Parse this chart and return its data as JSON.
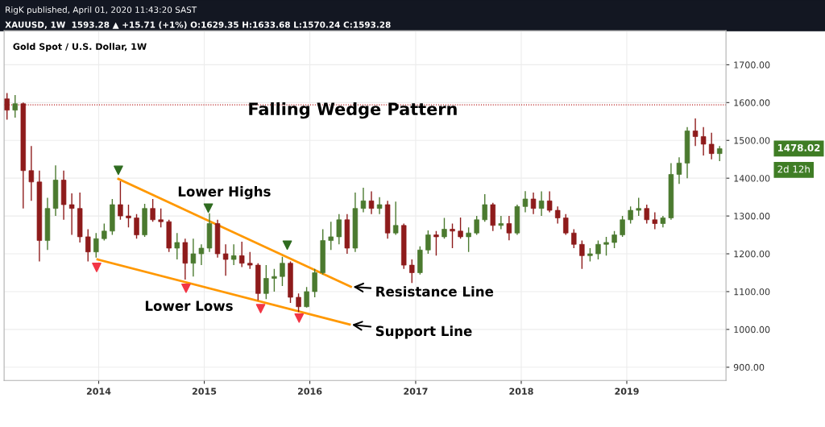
{
  "chart_data": {
    "type": "candlestick",
    "title": "Gold Spot / U.S. Dollar, 1W",
    "annotations": [
      "RigK published, April 01, 2020 11:43:20 SAST",
      "XAUUSD, 1W  1593.28 ▲ +15.71 (+1%) O:1629.35 H:1633.68 L:1570.24 C:1593.28",
      "Falling Wedge Pattern",
      "Lower Highs",
      "Lower Lows",
      "Resistance Line",
      "Support Line",
      "1478.02",
      "2d 12h"
    ],
    "x": [
      "2013-02-18",
      "2013-03-18",
      "2013-04-15",
      "2013-05-13",
      "2013-06-10",
      "2013-07-08",
      "2013-08-05",
      "2013-09-02",
      "2013-09-30",
      "2013-10-28",
      "2013-11-25",
      "2013-12-23",
      "2014-01-20",
      "2014-02-17",
      "2014-03-17",
      "2014-04-14",
      "2014-05-12",
      "2014-06-09",
      "2014-07-07",
      "2014-08-04",
      "2014-09-01",
      "2014-09-29",
      "2014-10-27",
      "2014-11-24",
      "2014-12-22",
      "2015-01-19",
      "2015-02-16",
      "2015-03-16",
      "2015-04-13",
      "2015-05-11",
      "2015-06-08",
      "2015-07-06",
      "2015-08-03",
      "2015-08-31",
      "2015-09-28",
      "2015-10-26",
      "2015-11-23",
      "2015-12-21",
      "2016-01-18",
      "2016-02-15",
      "2016-03-14",
      "2016-04-11",
      "2016-05-09",
      "2016-06-06",
      "2016-07-04",
      "2016-08-01",
      "2016-08-29",
      "2016-09-26",
      "2016-10-24",
      "2016-11-21",
      "2016-12-19",
      "2017-01-16",
      "2017-02-13",
      "2017-03-13",
      "2017-04-10",
      "2017-05-08",
      "2017-06-05",
      "2017-07-03",
      "2017-07-31",
      "2017-08-28",
      "2017-09-25",
      "2017-10-23",
      "2017-11-20",
      "2017-12-18",
      "2018-01-15",
      "2018-02-12",
      "2018-03-12",
      "2018-04-09",
      "2018-05-07",
      "2018-06-04",
      "2018-07-02",
      "2018-07-30",
      "2018-08-27",
      "2018-09-24",
      "2018-10-22",
      "2018-11-19",
      "2018-12-17",
      "2019-01-14",
      "2019-02-11",
      "2019-03-11",
      "2019-04-08",
      "2019-05-06",
      "2019-06-03",
      "2019-07-01",
      "2019-07-29",
      "2019-08-26",
      "2019-09-23",
      "2019-10-21",
      "2019-11-18"
    ],
    "ohlc": [
      [
        1610,
        1625,
        1555,
        1580
      ],
      [
        1580,
        1620,
        1560,
        1597
      ],
      [
        1597,
        1600,
        1320,
        1420
      ],
      [
        1420,
        1485,
        1340,
        1390
      ],
      [
        1390,
        1420,
        1180,
        1235
      ],
      [
        1235,
        1348,
        1210,
        1320
      ],
      [
        1320,
        1434,
        1300,
        1395
      ],
      [
        1395,
        1420,
        1290,
        1330
      ],
      [
        1330,
        1360,
        1250,
        1320
      ],
      [
        1320,
        1362,
        1230,
        1245
      ],
      [
        1245,
        1265,
        1180,
        1205
      ],
      [
        1205,
        1255,
        1190,
        1240
      ],
      [
        1240,
        1280,
        1235,
        1260
      ],
      [
        1260,
        1345,
        1250,
        1330
      ],
      [
        1330,
        1392,
        1290,
        1300
      ],
      [
        1300,
        1330,
        1270,
        1295
      ],
      [
        1295,
        1305,
        1240,
        1250
      ],
      [
        1250,
        1332,
        1245,
        1320
      ],
      [
        1320,
        1345,
        1285,
        1290
      ],
      [
        1290,
        1320,
        1270,
        1285
      ],
      [
        1285,
        1290,
        1205,
        1215
      ],
      [
        1215,
        1255,
        1185,
        1230
      ],
      [
        1230,
        1240,
        1132,
        1175
      ],
      [
        1175,
        1240,
        1140,
        1200
      ],
      [
        1200,
        1225,
        1170,
        1215
      ],
      [
        1215,
        1307,
        1205,
        1280
      ],
      [
        1280,
        1290,
        1190,
        1200
      ],
      [
        1200,
        1225,
        1142,
        1185
      ],
      [
        1185,
        1225,
        1170,
        1195
      ],
      [
        1195,
        1232,
        1165,
        1175
      ],
      [
        1175,
        1205,
        1160,
        1170
      ],
      [
        1170,
        1175,
        1077,
        1095
      ],
      [
        1095,
        1170,
        1080,
        1135
      ],
      [
        1135,
        1160,
        1100,
        1140
      ],
      [
        1140,
        1192,
        1115,
        1175
      ],
      [
        1175,
        1180,
        1070,
        1085
      ],
      [
        1085,
        1095,
        1046,
        1060
      ],
      [
        1060,
        1112,
        1058,
        1100
      ],
      [
        1100,
        1160,
        1085,
        1150
      ],
      [
        1150,
        1265,
        1145,
        1235
      ],
      [
        1235,
        1285,
        1210,
        1245
      ],
      [
        1245,
        1305,
        1225,
        1290
      ],
      [
        1290,
        1305,
        1200,
        1215
      ],
      [
        1215,
        1362,
        1205,
        1320
      ],
      [
        1320,
        1375,
        1310,
        1340
      ],
      [
        1340,
        1365,
        1305,
        1320
      ],
      [
        1320,
        1350,
        1305,
        1330
      ],
      [
        1330,
        1340,
        1240,
        1255
      ],
      [
        1255,
        1338,
        1250,
        1275
      ],
      [
        1275,
        1280,
        1160,
        1170
      ],
      [
        1170,
        1185,
        1123,
        1150
      ],
      [
        1150,
        1220,
        1145,
        1210
      ],
      [
        1210,
        1262,
        1200,
        1250
      ],
      [
        1250,
        1260,
        1195,
        1245
      ],
      [
        1245,
        1295,
        1240,
        1265
      ],
      [
        1265,
        1280,
        1215,
        1260
      ],
      [
        1260,
        1296,
        1240,
        1245
      ],
      [
        1245,
        1270,
        1205,
        1255
      ],
      [
        1255,
        1300,
        1250,
        1290
      ],
      [
        1290,
        1358,
        1285,
        1330
      ],
      [
        1330,
        1335,
        1260,
        1275
      ],
      [
        1275,
        1300,
        1265,
        1280
      ],
      [
        1280,
        1300,
        1236,
        1255
      ],
      [
        1255,
        1330,
        1250,
        1325
      ],
      [
        1325,
        1366,
        1310,
        1345
      ],
      [
        1345,
        1362,
        1305,
        1320
      ],
      [
        1320,
        1365,
        1300,
        1340
      ],
      [
        1340,
        1365,
        1310,
        1315
      ],
      [
        1315,
        1325,
        1280,
        1295
      ],
      [
        1295,
        1305,
        1250,
        1255
      ],
      [
        1255,
        1265,
        1215,
        1225
      ],
      [
        1225,
        1235,
        1160,
        1195
      ],
      [
        1195,
        1215,
        1180,
        1200
      ],
      [
        1200,
        1235,
        1185,
        1225
      ],
      [
        1225,
        1245,
        1195,
        1230
      ],
      [
        1230,
        1260,
        1215,
        1250
      ],
      [
        1250,
        1300,
        1245,
        1290
      ],
      [
        1290,
        1325,
        1280,
        1315
      ],
      [
        1315,
        1348,
        1300,
        1320
      ],
      [
        1320,
        1330,
        1280,
        1290
      ],
      [
        1290,
        1310,
        1265,
        1280
      ],
      [
        1280,
        1300,
        1270,
        1295
      ],
      [
        1295,
        1440,
        1290,
        1410
      ],
      [
        1410,
        1455,
        1385,
        1440
      ],
      [
        1440,
        1535,
        1400,
        1525
      ],
      [
        1525,
        1558,
        1485,
        1510
      ],
      [
        1510,
        1535,
        1460,
        1490
      ],
      [
        1490,
        1520,
        1450,
        1465
      ],
      [
        1465,
        1485,
        1445,
        1478.02
      ]
    ],
    "colors": [
      "#8e1b1b",
      "#4b7a2f",
      "#8e1b1b",
      "#8e1b1b",
      "#8e1b1b",
      "#4b7a2f",
      "#4b7a2f",
      "#8e1b1b",
      "#8e1b1b",
      "#8e1b1b",
      "#8e1b1b",
      "#4b7a2f",
      "#4b7a2f",
      "#4b7a2f",
      "#8e1b1b",
      "#8e1b1b",
      "#8e1b1b",
      "#4b7a2f",
      "#8e1b1b",
      "#8e1b1b",
      "#8e1b1b",
      "#4b7a2f",
      "#8e1b1b",
      "#4b7a2f",
      "#4b7a2f",
      "#4b7a2f",
      "#8e1b1b",
      "#8e1b1b",
      "#4b7a2f",
      "#8e1b1b",
      "#8e1b1b",
      "#8e1b1b",
      "#4b7a2f",
      "#4b7a2f",
      "#4b7a2f",
      "#8e1b1b",
      "#8e1b1b",
      "#4b7a2f",
      "#4b7a2f",
      "#4b7a2f",
      "#4b7a2f",
      "#4b7a2f",
      "#8e1b1b",
      "#4b7a2f",
      "#4b7a2f",
      "#8e1b1b",
      "#4b7a2f",
      "#8e1b1b",
      "#4b7a2f",
      "#8e1b1b",
      "#8e1b1b",
      "#4b7a2f",
      "#4b7a2f",
      "#8e1b1b",
      "#4b7a2f",
      "#8e1b1b",
      "#8e1b1b",
      "#4b7a2f",
      "#4b7a2f",
      "#4b7a2f",
      "#8e1b1b",
      "#4b7a2f",
      "#8e1b1b",
      "#4b7a2f",
      "#4b7a2f",
      "#8e1b1b",
      "#4b7a2f",
      "#8e1b1b",
      "#8e1b1b",
      "#8e1b1b",
      "#8e1b1b",
      "#8e1b1b",
      "#4b7a2f",
      "#4b7a2f",
      "#4b7a2f",
      "#4b7a2f",
      "#4b7a2f",
      "#4b7a2f",
      "#4b7a2f",
      "#8e1b1b",
      "#8e1b1b",
      "#4b7a2f",
      "#4b7a2f",
      "#4b7a2f",
      "#4b7a2f",
      "#8e1b1b",
      "#8e1b1b",
      "#8e1b1b",
      "#4b7a2f"
    ],
    "series": [
      {
        "type": "line",
        "color": "#ff9800",
        "x": [
          "2014-03-10",
          "2016-05-22"
        ],
        "values": [
          1398,
          1113
        ]
      },
      {
        "type": "line",
        "color": "#ff9800",
        "x": [
          "2013-12-28",
          "2016-05-18"
        ],
        "values": [
          1185,
          1013
        ]
      },
      {
        "type": "scatter",
        "color": "#2e6b1f",
        "marker": "triangle",
        "x": [
          "2014-03-10",
          "2015-01-15",
          "2015-10-15"
        ],
        "values": [
          1421,
          1321,
          1223
        ]
      },
      {
        "type": "scatter",
        "color": "#f23645",
        "marker": "triangle",
        "x": [
          "2013-12-25",
          "2014-10-30",
          "2015-07-15",
          "2015-11-25"
        ],
        "values": [
          1164,
          1109,
          1055,
          1030
        ]
      }
    ],
    "ref_lines": [
      {
        "axis": "y",
        "value": 1594,
        "color": "#b71c1c",
        "line_style": "dotted"
      }
    ],
    "xlim": [
      "2013-02-08",
      "2019-12-10"
    ],
    "xticks": [
      "2014",
      "2015",
      "2016",
      "2017",
      "2018",
      "2019"
    ],
    "ylim": [
      865,
      1790
    ],
    "yticks": [
      {
        "value": 900,
        "label": "900.00"
      },
      {
        "value": 1000,
        "label": "1000.00"
      },
      {
        "value": 1100,
        "label": "1100.00"
      },
      {
        "value": 1200,
        "label": "1200.00"
      },
      {
        "value": 1300,
        "label": "1300.00"
      },
      {
        "value": 1400,
        "label": "1400.00"
      },
      {
        "value": 1500,
        "label": "1500.00"
      },
      {
        "value": 1600,
        "label": "1600.00"
      },
      {
        "value": 1700,
        "label": "1700.00"
      }
    ],
    "grid": true
  }
}
